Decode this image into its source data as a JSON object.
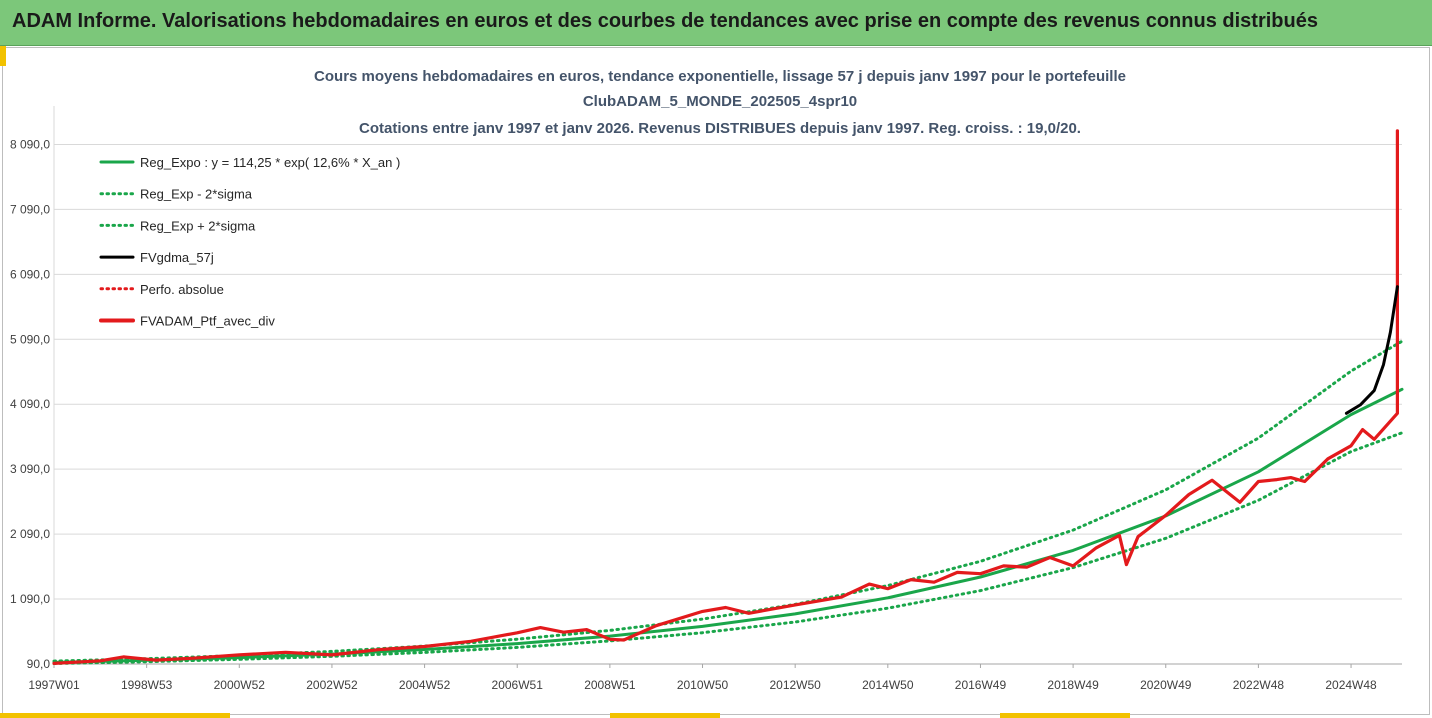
{
  "header": {
    "title": "ADAM Informe. Valorisations hebdomadaires en euros et des courbes de tendances avec prise en compte des revenus connus distribués"
  },
  "colors": {
    "banner": "#7cc77a",
    "green": "#1aa64a",
    "black": "#000000",
    "red": "#e31a1c",
    "accent": "#f2c200"
  },
  "chart_data": {
    "type": "line",
    "title_lines": [
      "Cours moyens hebdomadaires  en euros, tendance exponentielle, lissage 57 j depuis janv 1997 pour le portefeuille",
      "ClubADAM_5_MONDE_202505_4spr10",
      "Cotations entre janv 1997 et janv 2026. Revenus DISTRIBUES depuis janv 1997. Reg. croiss. : 19,0/20."
    ],
    "xlabel": "",
    "ylabel": "",
    "x_range": [
      1997.0,
      2026.1
    ],
    "ylim": [
      90,
      8590
    ],
    "y_ticks": [
      90,
      1090,
      2090,
      3090,
      4090,
      5090,
      6090,
      7090,
      8090
    ],
    "y_tick_labels": [
      "90,0",
      "1 090,0",
      "2 090,0",
      "3 090,0",
      "4 090,0",
      "5 090,0",
      "6 090,0",
      "7 090,0",
      "8 090,0"
    ],
    "x_ticks": [
      1997.0,
      1999.0,
      2001.0,
      2003.0,
      2005.0,
      2007.0,
      2009.0,
      2011.0,
      2013.0,
      2015.0,
      2017.0,
      2019.0,
      2021.0,
      2023.0,
      2025.0
    ],
    "x_tick_labels": [
      "1997W01",
      "1998W53",
      "2000W52",
      "2002W52",
      "2004W52",
      "2006W51",
      "2008W51",
      "2010W50",
      "2012W50",
      "2014W50",
      "2016W49",
      "2018W49",
      "2020W49",
      "2022W48",
      "2024W48"
    ],
    "grid": true,
    "legend_position": "top-left",
    "series": [
      {
        "name": "Reg_Expo : y = 114,25 * exp( 12,6% *  X_an )",
        "style": "solid",
        "color": "#1aa64a",
        "x": [
          1997.0,
          1999.0,
          2001.0,
          2003.0,
          2005.0,
          2007.0,
          2009.0,
          2011.0,
          2013.0,
          2015.0,
          2017.0,
          2019.0,
          2021.0,
          2023.0,
          2025.0,
          2026.1
        ],
        "y": [
          114,
          147,
          189,
          243,
          313,
          404,
          520,
          669,
          862,
          1110,
          1430,
          1840,
          2370,
          3050,
          3930,
          4320
        ]
      },
      {
        "name": "Reg_Exp - 2*sigma",
        "style": "dotted",
        "color": "#1aa64a",
        "x": [
          1997.0,
          1999.0,
          2001.0,
          2003.0,
          2005.0,
          2007.0,
          2009.0,
          2011.0,
          2013.0,
          2015.0,
          2017.0,
          2019.0,
          2021.0,
          2023.0,
          2025.0,
          2026.1
        ],
        "y": [
          98,
          126,
          162,
          208,
          268,
          345,
          445,
          572,
          737,
          950,
          1220,
          1575,
          2025,
          2610,
          3360,
          3650
        ]
      },
      {
        "name": "Reg_Exp + 2*sigma",
        "style": "dotted",
        "color": "#1aa64a",
        "x": [
          1997.0,
          1999.0,
          2001.0,
          2003.0,
          2005.0,
          2007.0,
          2009.0,
          2011.0,
          2013.0,
          2015.0,
          2017.0,
          2019.0,
          2021.0,
          2023.0,
          2025.0,
          2026.1
        ],
        "y": [
          134,
          172,
          221,
          284,
          366,
          472,
          608,
          782,
          1008,
          1298,
          1672,
          2152,
          2772,
          3568,
          4600,
          5060
        ]
      },
      {
        "name": "FVgdma_57j",
        "style": "solid",
        "color": "#000000",
        "x": [
          2024.9,
          2025.2,
          2025.5,
          2025.7,
          2025.85,
          2026.0
        ],
        "y": [
          3950,
          4080,
          4300,
          4700,
          5200,
          5900
        ]
      },
      {
        "name": "Perfo. absolue",
        "style": "dotted",
        "color": "#e31a1c",
        "x": [],
        "y": []
      },
      {
        "name": "FVADAM_Ptf_avec_div",
        "style": "solid",
        "color": "#e31a1c",
        "x": [
          1997.0,
          1998.0,
          1998.5,
          1999.2,
          2000.0,
          2001.0,
          2002.0,
          2003.0,
          2004.0,
          2005.0,
          2006.0,
          2007.0,
          2007.5,
          2008.0,
          2008.5,
          2009.0,
          2009.3,
          2010.0,
          2011.0,
          2011.5,
          2012.0,
          2013.0,
          2014.0,
          2014.6,
          2015.0,
          2015.5,
          2016.0,
          2016.5,
          2017.0,
          2017.5,
          2018.0,
          2018.5,
          2019.0,
          2019.5,
          2020.0,
          2020.15,
          2020.4,
          2021.0,
          2021.5,
          2022.0,
          2022.3,
          2022.6,
          2023.0,
          2023.4,
          2023.7,
          2024.0,
          2024.5,
          2025.0,
          2025.25,
          2025.5,
          2026.0,
          2026.0,
          2026.0,
          2026.0
        ],
        "y": [
          100,
          140,
          200,
          150,
          180,
          230,
          270,
          230,
          310,
          360,
          440,
          570,
          650,
          580,
          620,
          470,
          460,
          680,
          900,
          960,
          870,
          1000,
          1120,
          1320,
          1250,
          1390,
          1350,
          1500,
          1480,
          1600,
          1580,
          1730,
          1600,
          1880,
          2070,
          1620,
          2050,
          2380,
          2700,
          2920,
          2750,
          2580,
          2900,
          2930,
          2960,
          2900,
          3250,
          3450,
          3700,
          3550,
          3950,
          4140,
          4100,
          8300
        ]
      }
    ]
  }
}
